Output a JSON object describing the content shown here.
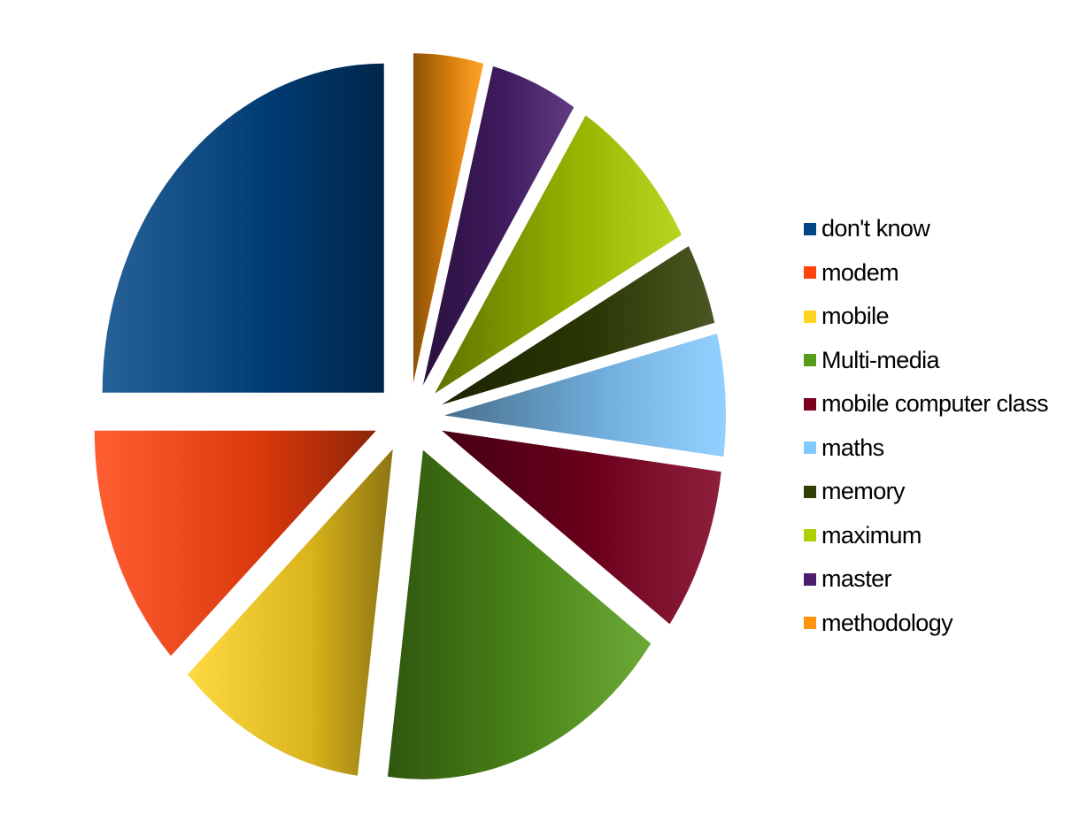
{
  "chart_data": {
    "type": "pie",
    "style": "3d-exploded",
    "title": "",
    "categories": [
      "don't know",
      "modem",
      "mobile",
      "Multi-media",
      "mobile computer class",
      "maths",
      "memory",
      "maximum",
      "master",
      "methodology"
    ],
    "values": [
      25,
      12,
      11,
      17,
      8,
      6,
      4,
      8,
      5,
      4
    ],
    "unit": "%",
    "colors": [
      "#004586",
      "#ff420e",
      "#ffd320",
      "#579d1c",
      "#7e0021",
      "#83caff",
      "#314004",
      "#aecf00",
      "#4b1f6f",
      "#ff950e"
    ],
    "legend_position": "right"
  }
}
